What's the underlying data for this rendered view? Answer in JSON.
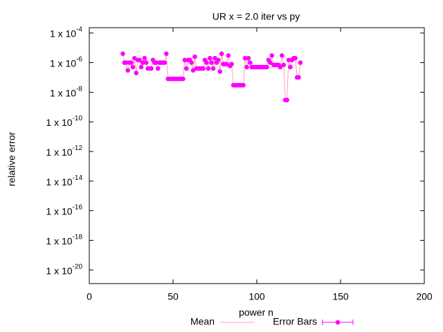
{
  "chart_data": {
    "type": "scatter",
    "title": "UR x = 2.0 iter vs py",
    "xlabel": "power n",
    "ylabel": "relative error",
    "log_y": true,
    "grid": false,
    "xlim": [
      0,
      200
    ],
    "xticks": [
      0,
      50,
      100,
      150,
      200
    ],
    "ylim": [
      1.2e-21,
      0.00023
    ],
    "yticks": [
      {
        "value": 0.0001,
        "label": "1 x 10",
        "exponent": "-4"
      },
      {
        "value": 1e-06,
        "label": "1 x 10",
        "exponent": "-6"
      },
      {
        "value": 1e-08,
        "label": "1 x 10",
        "exponent": "-8"
      },
      {
        "value": 1e-10,
        "label": "1 x 10",
        "exponent": "-10"
      },
      {
        "value": 1e-12,
        "label": "1 x 10",
        "exponent": "-12"
      },
      {
        "value": 1e-14,
        "label": "1 x 10",
        "exponent": "-14"
      },
      {
        "value": 1e-16,
        "label": "1 x 10",
        "exponent": "-16"
      },
      {
        "value": 1e-18,
        "label": "1 x 10",
        "exponent": "-18"
      },
      {
        "value": 1e-20,
        "label": "1 x 10",
        "exponent": "-20"
      }
    ],
    "x": [
      20,
      21,
      22,
      23,
      24,
      25,
      26,
      27,
      28,
      29,
      30,
      31,
      32,
      33,
      34,
      35,
      36,
      37,
      38,
      39,
      40,
      41,
      42,
      43,
      44,
      45,
      46,
      47,
      48,
      49,
      50,
      51,
      52,
      53,
      54,
      55,
      56,
      57,
      58,
      59,
      60,
      61,
      62,
      63,
      64,
      65,
      66,
      67,
      68,
      69,
      70,
      71,
      72,
      73,
      74,
      75,
      76,
      77,
      78,
      79,
      80,
      81,
      82,
      83,
      84,
      85,
      86,
      87,
      88,
      89,
      90,
      91,
      92,
      93,
      94,
      95,
      96,
      97,
      98,
      99,
      100,
      101,
      102,
      103,
      104,
      105,
      106,
      107,
      108,
      109,
      110,
      111,
      112,
      113,
      114,
      115,
      116,
      117,
      118,
      119,
      120,
      121,
      122,
      123,
      124,
      125,
      126
    ],
    "series": [
      {
        "name": "Mean",
        "color": "#ffa0b0",
        "style": "line",
        "values": [
          4e-06,
          1e-06,
          1e-06,
          3e-07,
          1e-06,
          1e-06,
          5e-07,
          2e-06,
          2e-07,
          1.5e-06,
          1.5e-06,
          5e-07,
          1e-06,
          2e-06,
          1e-06,
          4e-07,
          4e-07,
          4e-07,
          1.5e-06,
          1e-06,
          1e-06,
          4e-07,
          1e-06,
          1e-06,
          1e-06,
          1e-06,
          4e-06,
          8e-08,
          8e-08,
          8e-08,
          8e-08,
          8e-08,
          8e-08,
          8e-08,
          8e-08,
          8e-08,
          8e-08,
          1.5e-06,
          4e-07,
          1.5e-06,
          1.5e-06,
          1e-06,
          3e-07,
          2.5e-06,
          4e-07,
          4e-07,
          4e-07,
          4e-07,
          4e-07,
          1.5e-06,
          1e-06,
          4e-07,
          2e-06,
          1e-06,
          4e-07,
          2e-06,
          1e-06,
          1.5e-06,
          2.5e-07,
          4e-06,
          8e-07,
          8e-07,
          8e-07,
          3e-06,
          6e-07,
          8e-07,
          3e-08,
          3e-08,
          3e-08,
          3e-08,
          3e-08,
          3e-08,
          3e-08,
          2e-06,
          5e-07,
          2e-06,
          1e-06,
          5e-07,
          5e-07,
          5e-07,
          5e-07,
          5e-07,
          5e-07,
          5e-07,
          5e-07,
          5e-07,
          5e-07,
          1.5e-06,
          1e-06,
          3e-06,
          7e-07,
          7e-07,
          7e-07,
          7e-07,
          5e-07,
          3e-06,
          7e-07,
          3e-09,
          3e-09,
          1.5e-06,
          5e-07,
          1.5e-06,
          2e-06,
          2e-06,
          1e-07,
          1e-07,
          1e-06
        ]
      },
      {
        "name": "Error Bars",
        "color": "#ff00ff",
        "style": "points",
        "values": [
          4e-06,
          1e-06,
          1e-06,
          3e-07,
          1e-06,
          1e-06,
          5e-07,
          2e-06,
          2e-07,
          1.5e-06,
          1.5e-06,
          5e-07,
          1e-06,
          2e-06,
          1e-06,
          4e-07,
          4e-07,
          4e-07,
          1.5e-06,
          1e-06,
          1e-06,
          4e-07,
          1e-06,
          1e-06,
          1e-06,
          1e-06,
          4e-06,
          8e-08,
          8e-08,
          8e-08,
          8e-08,
          8e-08,
          8e-08,
          8e-08,
          8e-08,
          8e-08,
          8e-08,
          1.5e-06,
          4e-07,
          1.5e-06,
          1.5e-06,
          1e-06,
          3e-07,
          2.5e-06,
          4e-07,
          4e-07,
          4e-07,
          4e-07,
          4e-07,
          1.5e-06,
          1e-06,
          4e-07,
          2e-06,
          1e-06,
          4e-07,
          2e-06,
          1e-06,
          1.5e-06,
          2.5e-07,
          4e-06,
          8e-07,
          8e-07,
          8e-07,
          3e-06,
          6e-07,
          8e-07,
          3e-08,
          3e-08,
          3e-08,
          3e-08,
          3e-08,
          3e-08,
          3e-08,
          2e-06,
          5e-07,
          2e-06,
          1e-06,
          5e-07,
          5e-07,
          5e-07,
          5e-07,
          5e-07,
          5e-07,
          5e-07,
          5e-07,
          5e-07,
          5e-07,
          1.5e-06,
          1e-06,
          3e-06,
          7e-07,
          7e-07,
          7e-07,
          7e-07,
          5e-07,
          3e-06,
          7e-07,
          3e-09,
          3e-09,
          1.5e-06,
          5e-07,
          1.5e-06,
          2e-06,
          2e-06,
          1e-07,
          1e-07,
          1e-06
        ]
      }
    ]
  }
}
